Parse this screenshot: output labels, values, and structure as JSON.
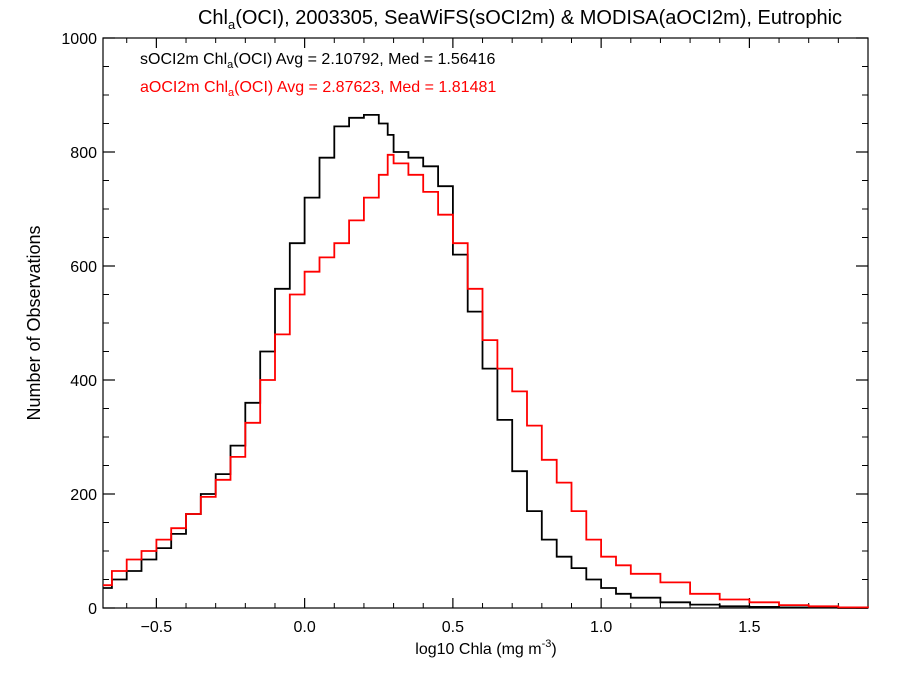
{
  "chart_data": {
    "type": "histogram-step",
    "title_parts": [
      "Chl",
      "a",
      "(OCI), 2003305, SeaWiFS(sOCI2m) & MODISA(aOCI2m), Eutrophic"
    ],
    "xlabel_parts": [
      "log10 Chla (mg m",
      "-3",
      ")"
    ],
    "ylabel": "Number of Observations",
    "xlim": [
      -0.68,
      1.9
    ],
    "ylim": [
      0,
      1000
    ],
    "x_ticks": [
      -0.5,
      0.0,
      0.5,
      1.0,
      1.5
    ],
    "x_tick_labels": [
      "−0.5",
      "0.0",
      "0.5",
      "1.0",
      "1.5"
    ],
    "y_ticks": [
      0,
      200,
      400,
      600,
      800,
      1000
    ],
    "y_tick_labels": [
      "0",
      "200",
      "400",
      "600",
      "800",
      "1000"
    ],
    "legend": [
      {
        "parts": [
          "sOCI2m Chl",
          "a",
          "(OCI) Avg = 2.10792, Med = 1.56416"
        ],
        "color": "#000000"
      },
      {
        "parts": [
          "aOCI2m Chl",
          "a",
          "(OCI) Avg = 2.87623, Med = 1.81481"
        ],
        "color": "#ff0000"
      }
    ],
    "series": [
      {
        "color": "#000000",
        "x": [
          -0.68,
          -0.65,
          -0.6,
          -0.55,
          -0.5,
          -0.45,
          -0.4,
          -0.35,
          -0.3,
          -0.25,
          -0.2,
          -0.15,
          -0.1,
          -0.05,
          0.0,
          0.05,
          0.1,
          0.15,
          0.2,
          0.25,
          0.28,
          0.3,
          0.35,
          0.4,
          0.45,
          0.5,
          0.55,
          0.6,
          0.65,
          0.7,
          0.75,
          0.8,
          0.85,
          0.9,
          0.95,
          1.0,
          1.05,
          1.1,
          1.2,
          1.3,
          1.4,
          1.5,
          1.6,
          1.7,
          1.8,
          1.9
        ],
        "y": [
          35,
          50,
          65,
          85,
          105,
          130,
          165,
          200,
          235,
          285,
          360,
          450,
          560,
          640,
          720,
          790,
          845,
          860,
          865,
          850,
          830,
          800,
          790,
          775,
          740,
          620,
          520,
          420,
          330,
          240,
          170,
          120,
          90,
          70,
          50,
          35,
          25,
          18,
          10,
          6,
          3,
          2,
          1,
          1,
          0,
          0
        ]
      },
      {
        "color": "#ff0000",
        "x": [
          -0.68,
          -0.65,
          -0.6,
          -0.55,
          -0.5,
          -0.45,
          -0.4,
          -0.35,
          -0.3,
          -0.25,
          -0.2,
          -0.15,
          -0.1,
          -0.05,
          0.0,
          0.05,
          0.1,
          0.15,
          0.2,
          0.25,
          0.28,
          0.3,
          0.35,
          0.4,
          0.45,
          0.5,
          0.55,
          0.6,
          0.65,
          0.7,
          0.75,
          0.8,
          0.85,
          0.9,
          0.95,
          1.0,
          1.05,
          1.1,
          1.2,
          1.3,
          1.4,
          1.5,
          1.6,
          1.7,
          1.8,
          1.9
        ],
        "y": [
          40,
          65,
          85,
          100,
          120,
          140,
          165,
          195,
          225,
          265,
          325,
          400,
          480,
          550,
          590,
          615,
          640,
          680,
          720,
          760,
          795,
          780,
          760,
          730,
          690,
          640,
          560,
          470,
          420,
          380,
          320,
          260,
          220,
          170,
          120,
          90,
          75,
          60,
          45,
          25,
          15,
          10,
          5,
          3,
          1,
          0
        ]
      }
    ]
  }
}
